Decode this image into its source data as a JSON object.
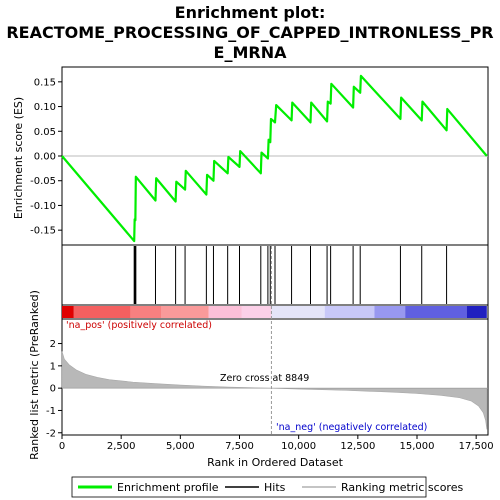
{
  "title_line1": "Enrichment plot:",
  "title_line2": "REACTOME_PROCESSING_OF_CAPPED_INTRONLESS_PR",
  "title_line3": "E_MRNA",
  "chart_data": {
    "type": "line",
    "x_range": [
      0,
      18000
    ],
    "x_ticks": [
      0,
      2500,
      5000,
      7500,
      10000,
      12500,
      15000,
      17500
    ],
    "x_tick_labels": [
      "0",
      "2,500",
      "5,000",
      "7,500",
      "10,000",
      "12,500",
      "15,000",
      "17,500"
    ],
    "xlabel": "Rank in Ordered Dataset",
    "es_panel": {
      "ylabel": "Enrichment score (ES)",
      "ylim": [
        -0.18,
        0.18
      ],
      "y_ticks": [
        -0.15,
        -0.1,
        -0.05,
        0.0,
        0.05,
        0.1,
        0.15
      ],
      "y_tick_labels": [
        "-0.15",
        "-0.10",
        "-0.05",
        "0.00",
        "0.05",
        "0.10",
        "0.15"
      ],
      "series_name": "Enrichment profile",
      "color": "#00ee00",
      "points": [
        [
          0,
          0.0
        ],
        [
          3050,
          -0.172
        ],
        [
          3070,
          -0.128
        ],
        [
          3100,
          -0.13
        ],
        [
          3120,
          -0.042
        ],
        [
          3950,
          -0.09
        ],
        [
          3980,
          -0.045
        ],
        [
          4800,
          -0.092
        ],
        [
          4830,
          -0.052
        ],
        [
          5200,
          -0.068
        ],
        [
          5230,
          -0.03
        ],
        [
          6100,
          -0.078
        ],
        [
          6130,
          -0.038
        ],
        [
          6400,
          -0.05
        ],
        [
          6430,
          -0.01
        ],
        [
          7000,
          -0.035
        ],
        [
          7030,
          -0.002
        ],
        [
          7500,
          -0.022
        ],
        [
          7530,
          0.01
        ],
        [
          8400,
          -0.035
        ],
        [
          8430,
          0.007
        ],
        [
          8700,
          -0.005
        ],
        [
          8730,
          0.033
        ],
        [
          8800,
          0.028
        ],
        [
          8830,
          0.075
        ],
        [
          9000,
          0.068
        ],
        [
          9050,
          0.103
        ],
        [
          9700,
          0.072
        ],
        [
          9730,
          0.108
        ],
        [
          10500,
          0.068
        ],
        [
          10530,
          0.108
        ],
        [
          11200,
          0.07
        ],
        [
          11230,
          0.11
        ],
        [
          11350,
          0.106
        ],
        [
          11380,
          0.146
        ],
        [
          12300,
          0.098
        ],
        [
          12330,
          0.14
        ],
        [
          12600,
          0.128
        ],
        [
          12630,
          0.162
        ],
        [
          14300,
          0.075
        ],
        [
          14330,
          0.118
        ],
        [
          15200,
          0.072
        ],
        [
          15230,
          0.11
        ],
        [
          16250,
          0.052
        ],
        [
          16280,
          0.095
        ],
        [
          17950,
          0.0
        ]
      ]
    },
    "hits": [
      3050,
      3070,
      3100,
      3120,
      3950,
      4800,
      5200,
      6100,
      6400,
      7000,
      7500,
      8400,
      8700,
      8800,
      9000,
      9700,
      10500,
      11200,
      11350,
      12300,
      12600,
      14300,
      15200,
      16250
    ],
    "ranked_panel": {
      "ylabel": "Ranked list metric (PreRanked)",
      "ylim": [
        -2.1,
        3.1
      ],
      "y_ticks": [
        -2,
        -1,
        0,
        1,
        2
      ],
      "y_tick_labels": [
        "-2",
        "-1",
        "0",
        "1",
        "2"
      ],
      "curve": [
        [
          0,
          1.65
        ],
        [
          100,
          1.3
        ],
        [
          300,
          1.05
        ],
        [
          600,
          0.82
        ],
        [
          1000,
          0.62
        ],
        [
          1500,
          0.48
        ],
        [
          2000,
          0.38
        ],
        [
          3000,
          0.27
        ],
        [
          4000,
          0.2
        ],
        [
          5000,
          0.14
        ],
        [
          6000,
          0.09
        ],
        [
          7000,
          0.05
        ],
        [
          8000,
          0.02
        ],
        [
          8849,
          0.0
        ],
        [
          10000,
          -0.04
        ],
        [
          11000,
          -0.07
        ],
        [
          12000,
          -0.1
        ],
        [
          13000,
          -0.14
        ],
        [
          14000,
          -0.18
        ],
        [
          15000,
          -0.24
        ],
        [
          16000,
          -0.32
        ],
        [
          16800,
          -0.43
        ],
        [
          17300,
          -0.58
        ],
        [
          17600,
          -0.8
        ],
        [
          17800,
          -1.1
        ],
        [
          17900,
          -1.45
        ],
        [
          17950,
          -1.85
        ]
      ],
      "zero_cross_rank": 8849,
      "zero_cross_label": "Zero cross at 8849",
      "pos_label": "'na_pos' (positively correlated)",
      "neg_label": "'na_neg' (negatively correlated)",
      "pos_color": "#cc0000",
      "neg_color": "#0000cc"
    },
    "heatmap_band": {
      "segments": [
        {
          "from": 0,
          "to": 500,
          "color": "#e00000"
        },
        {
          "from": 500,
          "to": 2900,
          "color": "#f46060"
        },
        {
          "from": 2900,
          "to": 4200,
          "color": "#f88080"
        },
        {
          "from": 4200,
          "to": 6200,
          "color": "#fa9a9a"
        },
        {
          "from": 6200,
          "to": 7600,
          "color": "#fcc0d8"
        },
        {
          "from": 7600,
          "to": 8850,
          "color": "#fcd0e8"
        },
        {
          "from": 8850,
          "to": 11100,
          "color": "#e4e4f8"
        },
        {
          "from": 11100,
          "to": 13200,
          "color": "#c8c8f8"
        },
        {
          "from": 13200,
          "to": 14500,
          "color": "#9898f0"
        },
        {
          "from": 14500,
          "to": 17100,
          "color": "#6060e0"
        },
        {
          "from": 17100,
          "to": 17950,
          "color": "#2020c0"
        }
      ]
    },
    "legend": [
      {
        "label": "Enrichment profile",
        "color": "#00ee00"
      },
      {
        "label": "Hits",
        "color": "#000000"
      },
      {
        "label": "Ranking metric scores",
        "color": "#b0b0b0"
      }
    ]
  }
}
